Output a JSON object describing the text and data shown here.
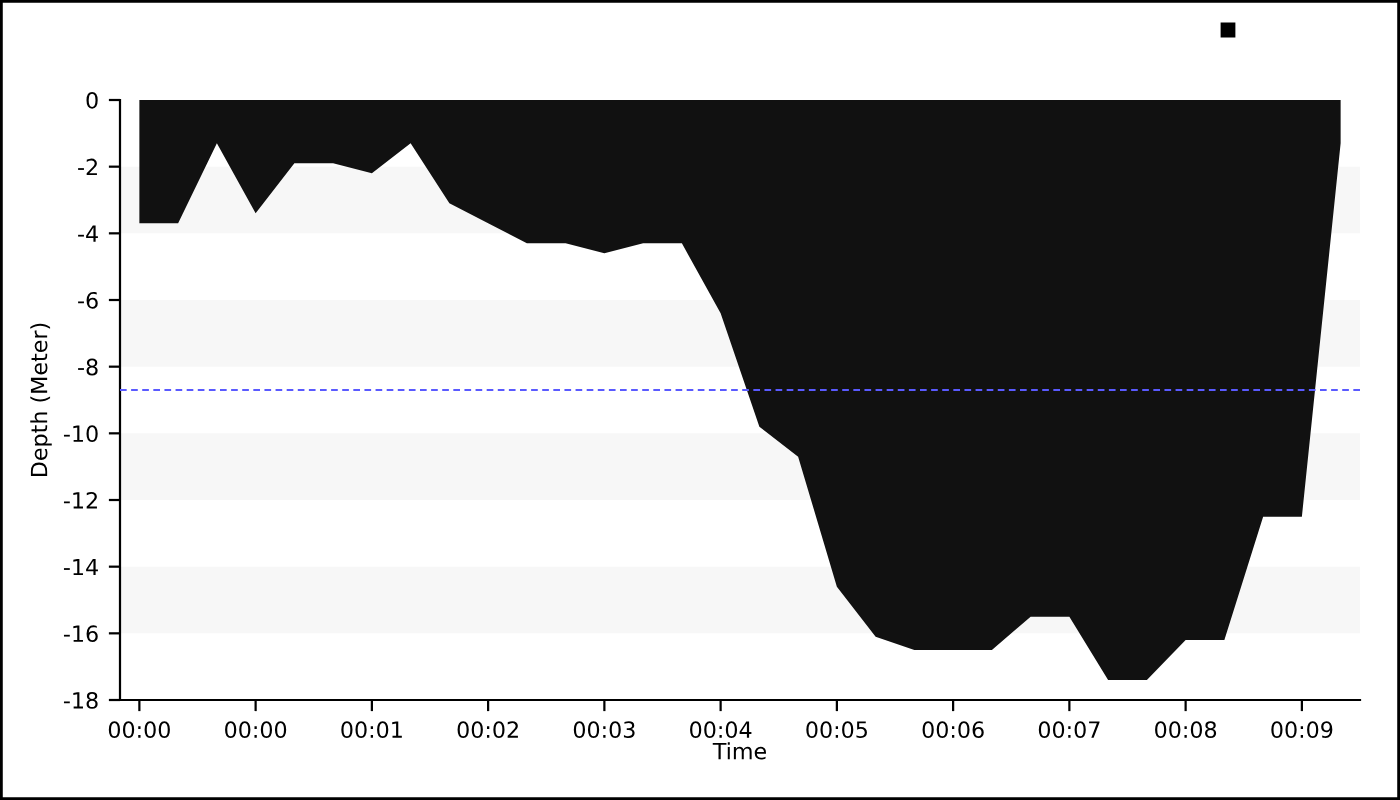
{
  "chart_data": {
    "type": "area",
    "xlabel": "Time",
    "ylabel": "Depth (Meter)",
    "categories": [
      "00:00",
      null,
      null,
      "00:00",
      null,
      null,
      "00:01",
      null,
      null,
      "00:02",
      null,
      null,
      "00:03",
      null,
      null,
      "00:04",
      null,
      null,
      "00:05",
      null,
      null,
      "00:06",
      null,
      null,
      "00:07",
      null,
      null,
      "00:08",
      null,
      null,
      "00:09",
      null
    ],
    "series": [
      {
        "color": "#111111",
        "values": [
          -3.7,
          -3.7,
          -1.3,
          -3.4,
          -1.9,
          -1.9,
          -2.2,
          -1.3,
          -3.1,
          -3.7,
          -4.3,
          -4.3,
          -4.6,
          -4.3,
          -4.3,
          -6.4,
          -9.8,
          -10.7,
          -14.6,
          -16.1,
          -16.5,
          -16.5,
          -16.5,
          -15.5,
          -15.5,
          -17.4,
          -17.4,
          -16.2,
          -16.2,
          -12.5,
          -12.5,
          -1.3
        ]
      }
    ],
    "ylim": [
      -18,
      0
    ],
    "yticks": [
      0,
      -2,
      -4,
      -6,
      -8,
      -10,
      -12,
      -14,
      -16,
      -18
    ],
    "ref_lines": [
      {
        "axis": "y",
        "value": -8.7,
        "color": "#5a5aff",
        "line_style": "dashed"
      }
    ],
    "bands": [
      {
        "axis": "y",
        "from": -2,
        "to": -4,
        "color": "#f7f7f7"
      },
      {
        "axis": "y",
        "from": -6,
        "to": -8,
        "color": "#f7f7f7"
      },
      {
        "axis": "y",
        "from": -10,
        "to": -12,
        "color": "#f7f7f7"
      },
      {
        "axis": "y",
        "from": -14,
        "to": -16,
        "color": "#f7f7f7"
      }
    ],
    "grid": false,
    "legend": false
  }
}
